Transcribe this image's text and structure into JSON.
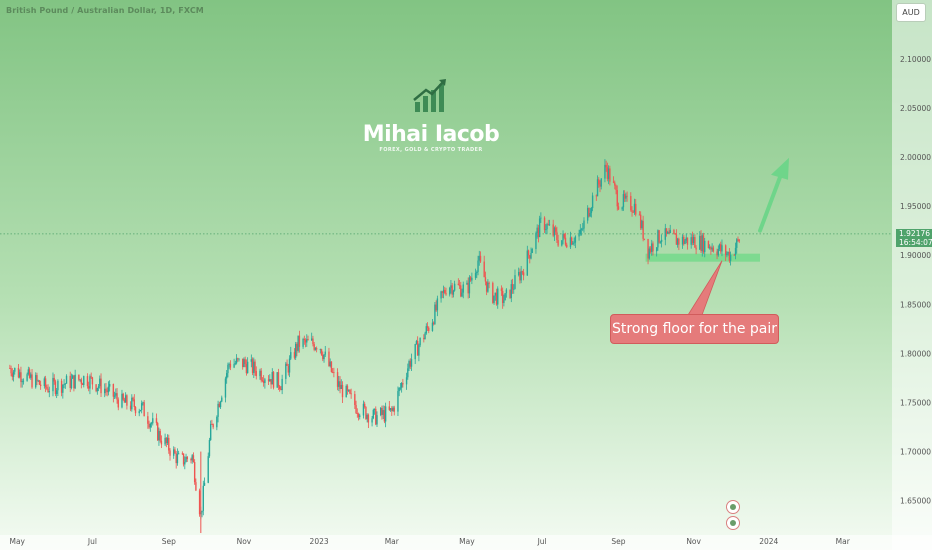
{
  "symbol_title": "British Pound / Australian Dollar, 1D, FXCM",
  "currency": "AUD",
  "brand": {
    "name": "Mihai Iacob",
    "tagline": "FOREX, GOLD & CRYPTO TRADER"
  },
  "annotation": "Strong floor for the pair",
  "last_price": {
    "value": "1.92176",
    "countdown": "16:54:07"
  },
  "colors": {
    "up": "#26a69a",
    "down": "#ef5350",
    "support": "#7ad98e",
    "arrow": "#6fd58a",
    "callout": "#e57b7b"
  },
  "chart_data": {
    "type": "candlestick",
    "series_name": "British Pound / Australian Dollar",
    "y_ticks": [
      "1.65000",
      "1.70000",
      "1.75000",
      "1.80000",
      "1.85000",
      "1.90000",
      "1.95000",
      "2.00000",
      "2.05000",
      "2.10000"
    ],
    "x_ticks": [
      "May",
      "Jul",
      "Sep",
      "Nov",
      "2023",
      "Mar",
      "May",
      "Jul",
      "Sep",
      "Nov",
      "2024",
      "Mar"
    ],
    "ylim": [
      1.615,
      2.16
    ],
    "support_level": 1.8975,
    "close_path": [
      [
        "2022-04-25",
        1.785
      ],
      [
        "2022-05-10",
        1.775
      ],
      [
        "2022-05-25",
        1.765
      ],
      [
        "2022-06-10",
        1.77
      ],
      [
        "2022-06-25",
        1.775
      ],
      [
        "2022-07-10",
        1.765
      ],
      [
        "2022-07-25",
        1.75
      ],
      [
        "2022-08-10",
        1.745
      ],
      [
        "2022-08-25",
        1.715
      ],
      [
        "2022-09-10",
        1.69
      ],
      [
        "2022-09-20",
        1.695
      ],
      [
        "2022-09-27",
        1.635
      ],
      [
        "2022-10-05",
        1.72
      ],
      [
        "2022-10-20",
        1.79
      ],
      [
        "2022-11-01",
        1.79
      ],
      [
        "2022-11-15",
        1.78
      ],
      [
        "2022-12-01",
        1.77
      ],
      [
        "2022-12-15",
        1.81
      ],
      [
        "2023-01-01",
        1.81
      ],
      [
        "2023-01-15",
        1.77
      ],
      [
        "2023-02-01",
        1.745
      ],
      [
        "2023-02-15",
        1.735
      ],
      [
        "2023-03-01",
        1.74
      ],
      [
        "2023-03-15",
        1.79
      ],
      [
        "2023-04-01",
        1.83
      ],
      [
        "2023-04-15",
        1.87
      ],
      [
        "2023-05-01",
        1.865
      ],
      [
        "2023-05-10",
        1.895
      ],
      [
        "2023-05-20",
        1.86
      ],
      [
        "2023-06-01",
        1.855
      ],
      [
        "2023-06-15",
        1.885
      ],
      [
        "2023-07-01",
        1.935
      ],
      [
        "2023-07-15",
        1.915
      ],
      [
        "2023-08-01",
        1.92
      ],
      [
        "2023-08-10",
        1.955
      ],
      [
        "2023-08-22",
        1.99
      ],
      [
        "2023-09-01",
        1.955
      ],
      [
        "2023-09-15",
        1.95
      ],
      [
        "2023-09-25",
        1.905
      ],
      [
        "2023-10-05",
        1.92
      ],
      [
        "2023-10-20",
        1.915
      ],
      [
        "2023-11-01",
        1.915
      ],
      [
        "2023-11-15",
        1.91
      ],
      [
        "2023-12-01",
        1.9
      ],
      [
        "2023-12-10",
        1.92
      ]
    ],
    "last_close": 1.92176
  }
}
